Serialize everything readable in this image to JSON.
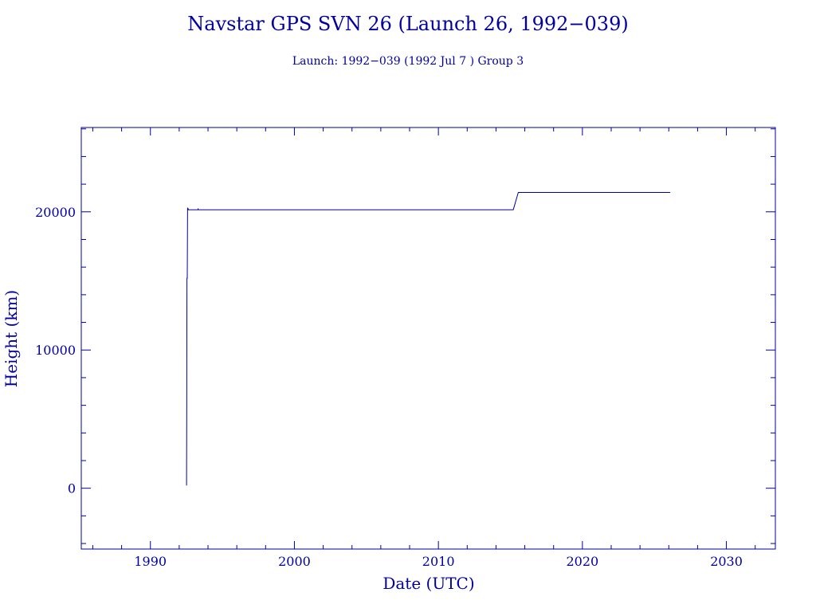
{
  "colors": {
    "ink": "#0000a0",
    "background": "#ffffff"
  },
  "chart_data": {
    "type": "line",
    "title": "Navstar GPS SVN 26 (Launch 26, 1992−039)",
    "subtitle": "Launch: 1992−039  (1992 Jul  7 )  Group 3",
    "xlabel": "Date (UTC)",
    "ylabel": "Height (km)",
    "xlim": [
      1985.2,
      2033.4
    ],
    "ylim": [
      -4400,
      26100
    ],
    "xticks": [
      1990,
      2000,
      2010,
      2020,
      2030
    ],
    "xtick_labels": [
      "1990",
      "2000",
      "2010",
      "2020",
      "2030"
    ],
    "yticks": [
      0,
      10000,
      20000
    ],
    "ytick_labels": [
      "0",
      "10000",
      "20000"
    ],
    "grid": false,
    "series": [
      {
        "x": [
          1992.51,
          1992.52,
          1992.54,
          1992.56,
          1992.58,
          1992.6,
          1992.62,
          1992.64,
          1993.0,
          1993.3,
          1993.31,
          1993.32,
          2000.0,
          2010.0,
          2015.2,
          2015.55,
          2016.0,
          2020.0,
          2026.1
        ],
        "y": [
          200,
          5000,
          15200,
          15200,
          20300,
          20150,
          20200,
          20150,
          20150,
          20150,
          20250,
          20150,
          20150,
          20150,
          20150,
          21400,
          21400,
          21400,
          21400
        ]
      }
    ]
  }
}
